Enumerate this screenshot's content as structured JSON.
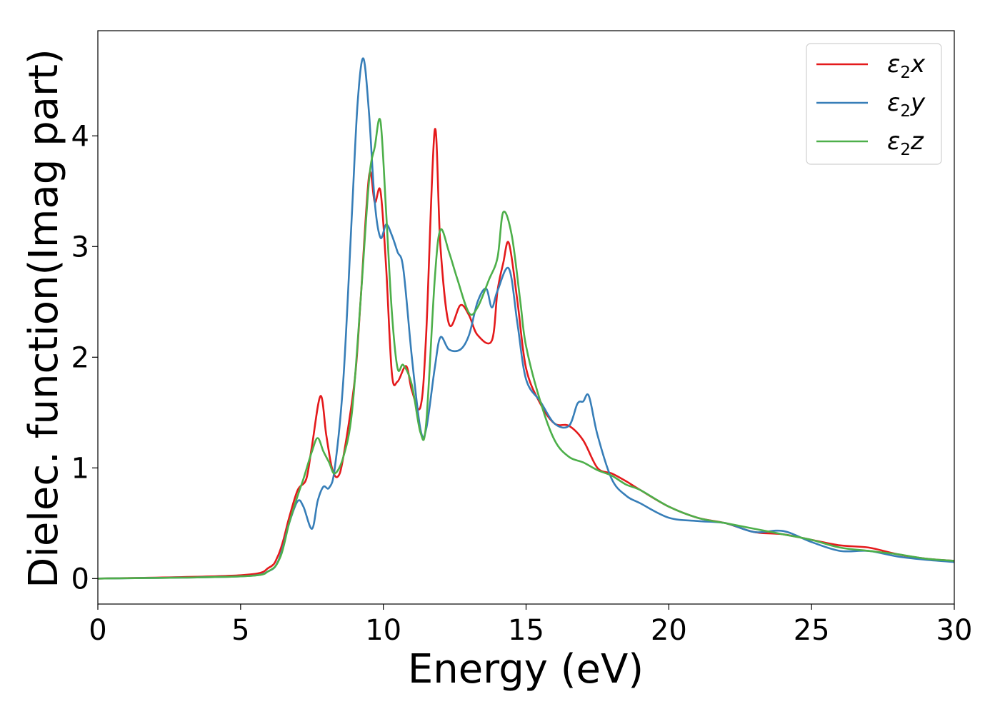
{
  "chart_data": {
    "type": "line",
    "xlabel": "Energy (eV)",
    "ylabel": "Dielec. function(Imag part)",
    "xlim": [
      0,
      30
    ],
    "ylim": [
      -0.23,
      4.95
    ],
    "xticks": [
      0,
      5,
      10,
      15,
      20,
      25,
      30
    ],
    "xtick_labels": [
      "0",
      "5",
      "10",
      "15",
      "20",
      "25",
      "30"
    ],
    "yticks": [
      0,
      1,
      2,
      3,
      4
    ],
    "ytick_labels": [
      "0",
      "1",
      "2",
      "3",
      "4"
    ],
    "grid": false,
    "legend_position": "top-right",
    "series": [
      {
        "name": "ε2x",
        "legend": {
          "base": "ε",
          "sub": "2",
          "tail": "x"
        },
        "color": "#e41a1c",
        "x": [
          0,
          5,
          6,
          6.3,
          6.5,
          6.7,
          7.0,
          7.3,
          7.5,
          7.8,
          8.0,
          8.2,
          8.4,
          8.6,
          9.0,
          9.2,
          9.5,
          9.7,
          9.9,
          10.1,
          10.3,
          10.5,
          10.8,
          11.0,
          11.3,
          11.5,
          11.8,
          12.0,
          12.3,
          12.7,
          13.0,
          13.3,
          13.8,
          14.0,
          14.2,
          14.4,
          14.7,
          15.0,
          15.5,
          16.0,
          16.5,
          17.0,
          17.5,
          18.0,
          18.5,
          19.0,
          20.0,
          21.0,
          22.0,
          23.0,
          24.0,
          25.0,
          26.0,
          27.0,
          28.0,
          29.0,
          30.0
        ],
        "y": [
          0.0,
          0.03,
          0.1,
          0.2,
          0.35,
          0.55,
          0.8,
          0.9,
          1.2,
          1.65,
          1.3,
          1.0,
          0.92,
          1.1,
          1.8,
          2.5,
          3.64,
          3.4,
          3.5,
          2.8,
          1.85,
          1.78,
          1.92,
          1.7,
          1.55,
          2.2,
          4.05,
          3.0,
          2.3,
          2.47,
          2.38,
          2.2,
          2.15,
          2.6,
          2.85,
          3.03,
          2.5,
          1.9,
          1.58,
          1.4,
          1.38,
          1.25,
          1.0,
          0.95,
          0.88,
          0.8,
          0.65,
          0.55,
          0.5,
          0.42,
          0.4,
          0.35,
          0.3,
          0.28,
          0.22,
          0.18,
          0.16
        ]
      },
      {
        "name": "ε2y",
        "legend": {
          "base": "ε",
          "sub": "2",
          "tail": "y"
        },
        "color": "#377eb8",
        "x": [
          0,
          5,
          6,
          6.3,
          6.5,
          6.7,
          7.0,
          7.2,
          7.5,
          7.7,
          7.9,
          8.1,
          8.3,
          8.6,
          8.9,
          9.1,
          9.3,
          9.5,
          9.7,
          9.9,
          10.1,
          10.3,
          10.5,
          10.7,
          11.0,
          11.3,
          11.5,
          11.8,
          12.0,
          12.3,
          12.7,
          13.0,
          13.3,
          13.6,
          13.8,
          14.0,
          14.4,
          14.7,
          15.0,
          15.5,
          16.0,
          16.5,
          16.8,
          17.0,
          17.2,
          17.5,
          18.0,
          18.5,
          19.0,
          20.0,
          21.0,
          22.0,
          23.0,
          24.0,
          25.0,
          26.0,
          27.0,
          28.0,
          29.0,
          30.0
        ],
        "y": [
          0.0,
          0.02,
          0.07,
          0.15,
          0.3,
          0.5,
          0.7,
          0.65,
          0.45,
          0.7,
          0.83,
          0.82,
          1.0,
          1.8,
          3.3,
          4.3,
          4.7,
          4.2,
          3.4,
          3.08,
          3.2,
          3.1,
          2.95,
          2.8,
          2.0,
          1.35,
          1.35,
          1.9,
          2.18,
          2.07,
          2.07,
          2.2,
          2.5,
          2.62,
          2.45,
          2.6,
          2.8,
          2.3,
          1.8,
          1.6,
          1.4,
          1.38,
          1.58,
          1.6,
          1.65,
          1.3,
          0.9,
          0.75,
          0.68,
          0.55,
          0.52,
          0.5,
          0.42,
          0.43,
          0.33,
          0.25,
          0.25,
          0.2,
          0.17,
          0.15
        ]
      },
      {
        "name": "ε2z",
        "legend": {
          "base": "ε",
          "sub": "2",
          "tail": "z"
        },
        "color": "#4daf4a",
        "x": [
          0,
          5,
          6,
          6.4,
          6.7,
          7.0,
          7.2,
          7.5,
          7.7,
          7.9,
          8.1,
          8.3,
          8.6,
          8.9,
          9.2,
          9.5,
          9.7,
          9.9,
          10.1,
          10.3,
          10.5,
          10.7,
          11.0,
          11.3,
          11.5,
          11.8,
          12.0,
          12.3,
          12.6,
          13.0,
          13.3,
          13.7,
          14.0,
          14.2,
          14.5,
          14.8,
          15.0,
          15.5,
          16.0,
          16.5,
          17.0,
          17.5,
          18.0,
          18.5,
          19.0,
          20.0,
          21.0,
          22.0,
          23.0,
          24.0,
          25.0,
          26.0,
          27.0,
          28.0,
          29.0,
          30.0
        ],
        "y": [
          0.0,
          0.02,
          0.07,
          0.2,
          0.5,
          0.75,
          0.9,
          1.15,
          1.27,
          1.15,
          1.05,
          0.95,
          1.1,
          1.5,
          2.5,
          3.6,
          3.9,
          4.13,
          3.3,
          2.4,
          1.9,
          1.93,
          1.75,
          1.32,
          1.4,
          2.7,
          3.15,
          2.95,
          2.7,
          2.4,
          2.45,
          2.7,
          2.9,
          3.31,
          3.1,
          2.5,
          2.1,
          1.6,
          1.25,
          1.1,
          1.05,
          0.98,
          0.93,
          0.85,
          0.8,
          0.65,
          0.55,
          0.5,
          0.45,
          0.4,
          0.35,
          0.28,
          0.25,
          0.22,
          0.18,
          0.16
        ]
      }
    ]
  }
}
